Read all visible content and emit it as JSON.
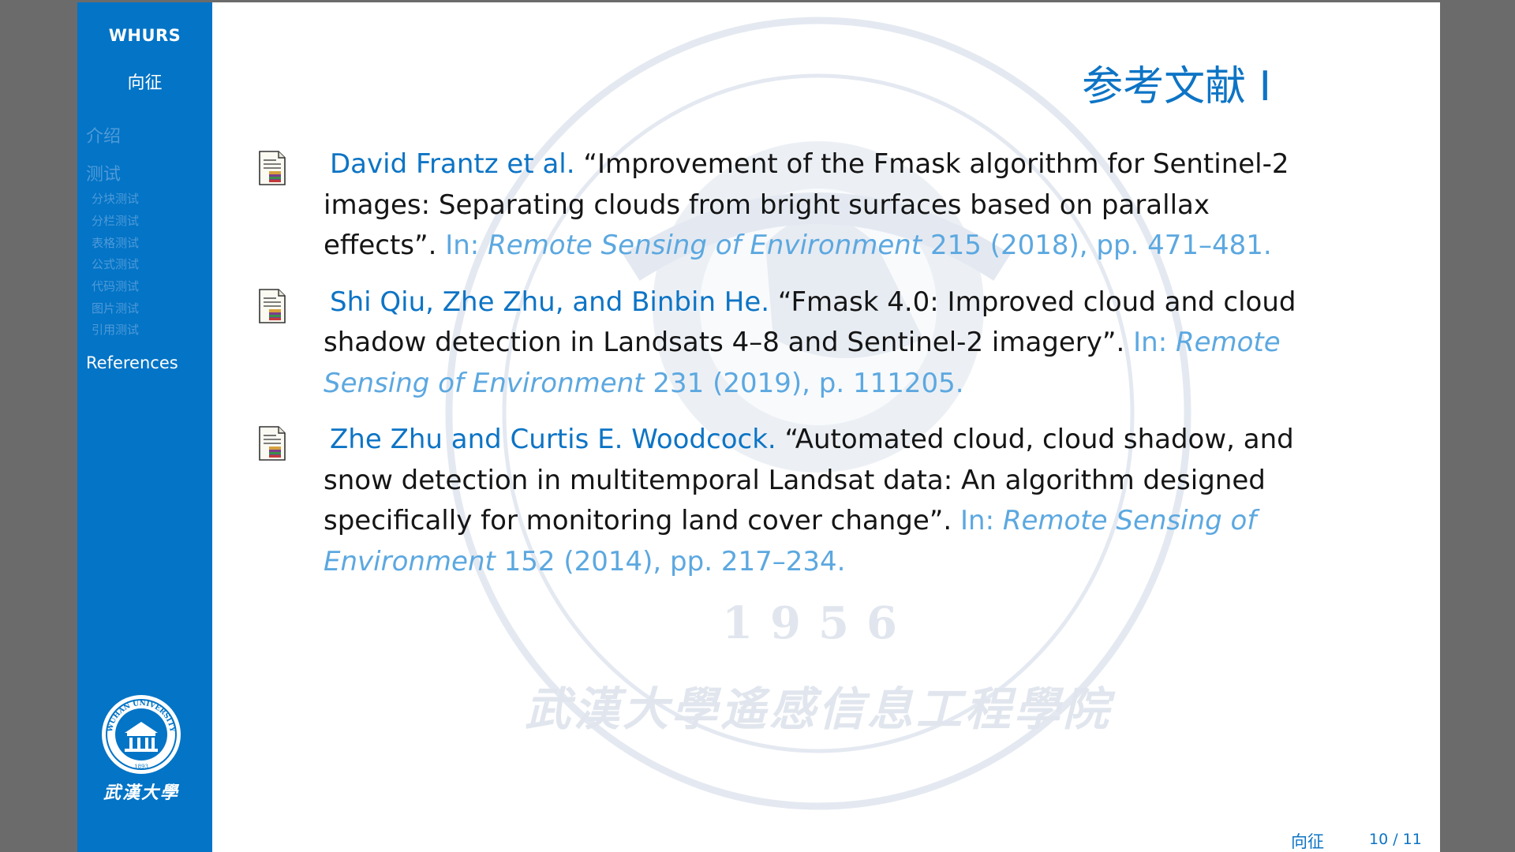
{
  "sidebar": {
    "author": "WHURS",
    "name": "向征",
    "sections": [
      {
        "label": "介绍"
      },
      {
        "label": "测试"
      }
    ],
    "subsections": [
      {
        "label": "分块测试"
      },
      {
        "label": "分栏测试"
      },
      {
        "label": "表格测试"
      },
      {
        "label": "公式测试"
      },
      {
        "label": "代码测试"
      },
      {
        "label": "图片测试"
      },
      {
        "label": "引用测试"
      }
    ],
    "active_section": "References",
    "logo_ring_text": "WUHAN UNIVERSITY",
    "logo_year": "1893",
    "logo_script": "武漢大學"
  },
  "watermark": {
    "year": "1956",
    "script": "武漢大學遙感信息工程學院"
  },
  "slide": {
    "title": "参考文献 I"
  },
  "references": [
    {
      "authors": "David Frantz et al.",
      "title": "“Improvement of the Fmask algorithm for Sentinel-2 images: Separating clouds from bright surfaces based on parallax effects”.",
      "in": "In:",
      "journal": "Remote Sensing of Environment",
      "tail": "215 (2018), pp. 471–481."
    },
    {
      "authors": "Shi Qiu, Zhe Zhu, and Binbin He.",
      "title": "“Fmask 4.0: Improved cloud and cloud shadow detection in Landsats 4–8 and Sentinel-2 imagery”.",
      "in": "In:",
      "journal": "Remote Sensing of Environment",
      "tail": "231 (2019), p. 111205."
    },
    {
      "authors": "Zhe Zhu and Curtis E. Woodcock.",
      "title": "“Automated cloud, cloud shadow, and snow detection in multitemporal Landsat data: An algorithm designed specifically for monitoring land cover change”.",
      "in": "In:",
      "journal": "Remote Sensing of Environment",
      "tail": "152 (2014), pp. 217–234."
    }
  ],
  "footer": {
    "name": "向征",
    "page": "10 / 11"
  },
  "colors": {
    "sidebar": "#0374c6",
    "accent": "#0d74c5",
    "link": "#5ca8e0",
    "viewer_bg": "#6b6b6b"
  }
}
